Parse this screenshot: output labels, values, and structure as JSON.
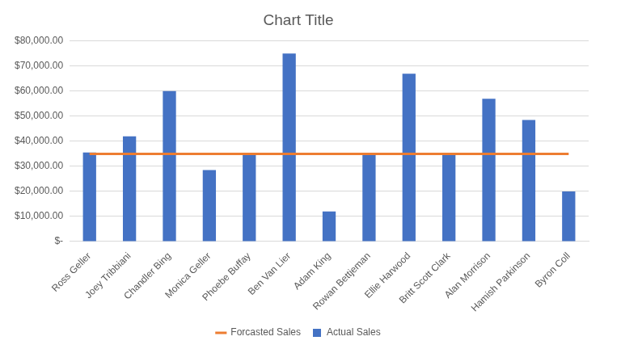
{
  "chart_data": {
    "type": "bar",
    "title": "Chart Title",
    "categories": [
      "Ross Geller",
      "Joey Tribbiani",
      "Chandler Bing",
      "Monica Geller",
      "Phoebe Buffay",
      "Ben Van Lier",
      "Adam King",
      "Rowan Bettjeman",
      "Ellie Harwood",
      "Britt Scott Clark",
      "Alan Morrison",
      "Hamish Parkinson",
      "Byron Coll"
    ],
    "series": [
      {
        "name": "Actual Sales",
        "type": "bar",
        "color": "#4472c4",
        "values": [
          35500,
          42000,
          60000,
          28500,
          35000,
          75000,
          12000,
          35000,
          67000,
          35000,
          57000,
          48500,
          20000
        ]
      },
      {
        "name": "Forcasted Sales",
        "type": "line",
        "color": "#ed7d31",
        "values": [
          35000,
          35000,
          35000,
          35000,
          35000,
          35000,
          35000,
          35000,
          35000,
          35000,
          35000,
          35000,
          35000
        ]
      }
    ],
    "ylim": [
      0,
      80000
    ],
    "yticks": [
      {
        "value": 0,
        "label": "$-"
      },
      {
        "value": 10000,
        "label": "$10,000.00"
      },
      {
        "value": 20000,
        "label": "$20,000.00"
      },
      {
        "value": 30000,
        "label": "$30,000.00"
      },
      {
        "value": 40000,
        "label": "$40,000.00"
      },
      {
        "value": 50000,
        "label": "$50,000.00"
      },
      {
        "value": 60000,
        "label": "$60,000.00"
      },
      {
        "value": 70000,
        "label": "$70,000.00"
      },
      {
        "value": 80000,
        "label": "$80,000.00"
      }
    ],
    "grid": true,
    "legend": "bottom"
  }
}
